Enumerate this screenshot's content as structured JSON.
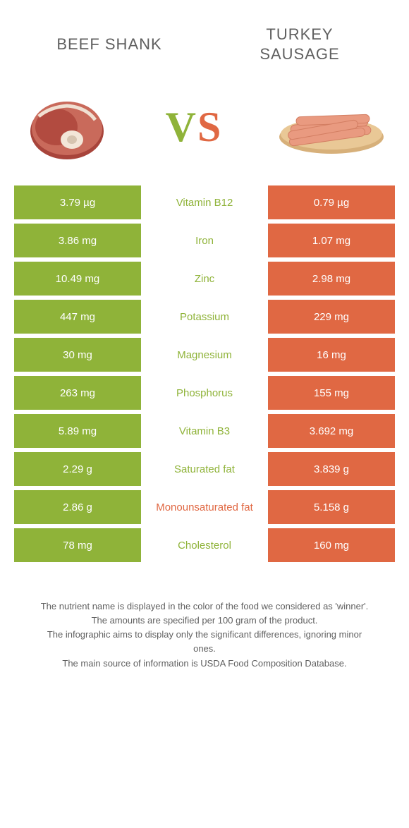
{
  "titles": {
    "left": "Beef Shank",
    "right_l1": "Turkey",
    "right_l2": "Sausage"
  },
  "colors": {
    "green": "#8fb339",
    "orange": "#e06843"
  },
  "rows": [
    {
      "left": "3.79 µg",
      "label": "Vitamin B12",
      "right": "0.79 µg",
      "winner": "green"
    },
    {
      "left": "3.86 mg",
      "label": "Iron",
      "right": "1.07 mg",
      "winner": "green"
    },
    {
      "left": "10.49 mg",
      "label": "Zinc",
      "right": "2.98 mg",
      "winner": "green"
    },
    {
      "left": "447 mg",
      "label": "Potassium",
      "right": "229 mg",
      "winner": "green"
    },
    {
      "left": "30 mg",
      "label": "Magnesium",
      "right": "16 mg",
      "winner": "green"
    },
    {
      "left": "263 mg",
      "label": "Phosphorus",
      "right": "155 mg",
      "winner": "green"
    },
    {
      "left": "5.89 mg",
      "label": "Vitamin B3",
      "right": "3.692 mg",
      "winner": "green"
    },
    {
      "left": "2.29 g",
      "label": "Saturated fat",
      "right": "3.839 g",
      "winner": "green"
    },
    {
      "left": "2.86 g",
      "label": "Monounsaturated fat",
      "right": "5.158 g",
      "winner": "orange"
    },
    {
      "left": "78 mg",
      "label": "Cholesterol",
      "right": "160 mg",
      "winner": "green"
    }
  ],
  "footer": {
    "l1": "The nutrient name is displayed in the color of the food we considered as 'winner'.",
    "l2": "The amounts are specified per 100 gram of the product.",
    "l3": "The infographic aims to display only the significant differences, ignoring minor ones.",
    "l4": "The main source of information is USDA Food Composition Database."
  }
}
